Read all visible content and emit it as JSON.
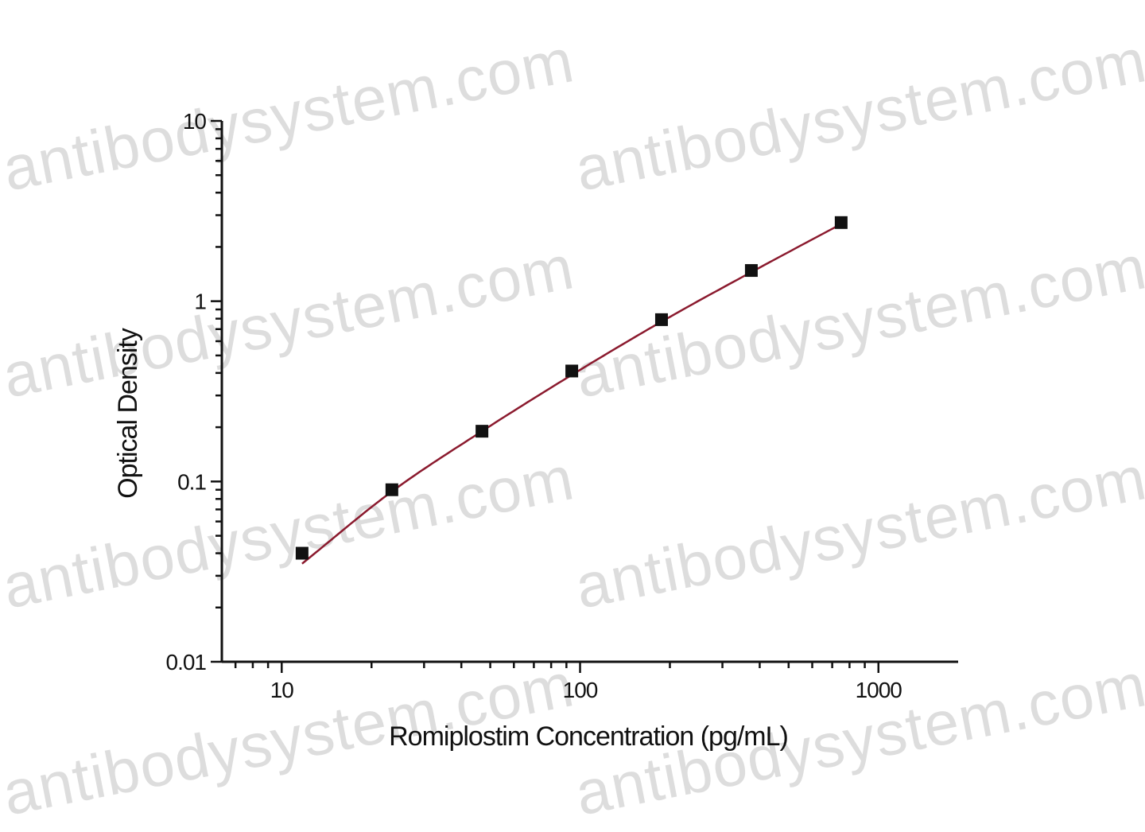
{
  "chart_data": {
    "type": "scatter",
    "xlabel": "Romiplostim Concentration (pg/mL)",
    "ylabel": "Optical Density",
    "x_scale": "log",
    "y_scale": "log",
    "xlim": [
      6.3,
      1850
    ],
    "ylim": [
      0.01,
      10
    ],
    "x_ticks": [
      {
        "value": 10,
        "label": "10"
      },
      {
        "value": 100,
        "label": "100"
      },
      {
        "value": 1000,
        "label": "1000"
      }
    ],
    "y_ticks": [
      {
        "value": 0.01,
        "label": "0.01"
      },
      {
        "value": 0.1,
        "label": "0.1"
      },
      {
        "value": 1,
        "label": "1"
      },
      {
        "value": 10,
        "label": "10"
      }
    ],
    "series": [
      {
        "x": [
          11.7,
          23.4,
          46.9,
          93.8,
          187.5,
          375,
          750
        ],
        "y": [
          0.04,
          0.09,
          0.19,
          0.41,
          0.79,
          1.48,
          2.73
        ],
        "marker": "square",
        "color": "#111111"
      }
    ],
    "fit_curve": {
      "x": [
        11.7,
        23.4,
        46.9,
        93.8,
        187.5,
        375,
        750
      ],
      "y": [
        0.035,
        0.088,
        0.19,
        0.39,
        0.77,
        1.45,
        2.68
      ],
      "color": "#8b1a2e"
    },
    "grid": false,
    "legend": "none"
  },
  "watermark": {
    "text": "antibodysystem.com",
    "color": "#000000"
  }
}
